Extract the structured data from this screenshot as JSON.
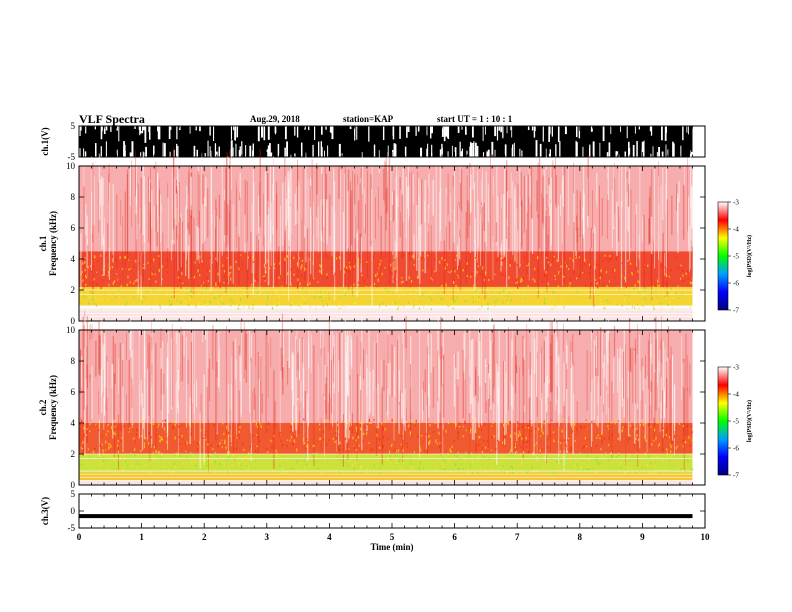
{
  "header": {
    "title": "VLF Spectra",
    "date": "Aug.29, 2018",
    "station": "station=KAP",
    "start_ut": "start  UT =   1 : 10 : 1"
  },
  "chart_data": [
    {
      "type": "line",
      "name": "ch1_waveform",
      "ylabel": "ch.1(V)",
      "ylim": [
        -5,
        5
      ],
      "yticks": [
        "5",
        "-5"
      ],
      "xlim": [
        0,
        10
      ],
      "note": "dense saturated waveform trace spanning full range"
    },
    {
      "type": "heatmap",
      "name": "ch1_spectrogram",
      "ylabel_line1": "ch.1",
      "ylabel_line2": "Frequency (kHz)",
      "ylim": [
        0,
        10
      ],
      "yticks": [
        "0",
        "2",
        "4",
        "6",
        "8",
        "10"
      ],
      "xlim": [
        0,
        9.8
      ],
      "bands": [
        {
          "from": 0.8,
          "to": 1.0,
          "color": "#ffffff"
        },
        {
          "from": 1.0,
          "to": 2.2,
          "color": "#f4d21e"
        },
        {
          "from": 2.2,
          "to": 4.5,
          "color": "#ee3a1c"
        },
        {
          "from": 4.5,
          "to": 10,
          "color": "#f6a6a6"
        }
      ],
      "colorbar": {
        "label": "log(PSD)(V²/Hz)",
        "ticks": [
          "-3",
          "-4",
          "-5",
          "-6",
          "-7"
        ],
        "range": [
          -7,
          -3
        ],
        "colors": [
          "#ffffff",
          "#ff0000",
          "#ffff00",
          "#00ff00",
          "#00a0ff",
          "#0000ff",
          "#000080"
        ]
      }
    },
    {
      "type": "heatmap",
      "name": "ch2_spectrogram",
      "ylabel_line1": "ch.2",
      "ylabel_line2": "Frequency (kHz)",
      "ylim": [
        0,
        10
      ],
      "yticks": [
        "0",
        "2",
        "4",
        "6",
        "8",
        "10"
      ],
      "xlim": [
        0,
        9.8
      ],
      "bands": [
        {
          "from": 0.3,
          "to": 0.8,
          "color": "#f6c018"
        },
        {
          "from": 0.8,
          "to": 2.0,
          "color": "#c8e02a"
        },
        {
          "from": 2.0,
          "to": 4.0,
          "color": "#ef4a1c"
        },
        {
          "from": 4.0,
          "to": 10,
          "color": "#f6a6a6"
        }
      ],
      "colorbar": {
        "label": "log(PSD)(V²/Hz)",
        "ticks": [
          "-3",
          "-4",
          "-5",
          "-6",
          "-7"
        ],
        "range": [
          -7,
          -3
        ],
        "colors": [
          "#ffffff",
          "#ff0000",
          "#ffff00",
          "#00ff00",
          "#00a0ff",
          "#0000ff",
          "#000080"
        ]
      }
    },
    {
      "type": "line",
      "name": "ch3_waveform",
      "ylabel": "ch.3(V)",
      "ylim": [
        -5,
        5
      ],
      "yticks": [
        "5",
        "0",
        "-5"
      ],
      "xlim": [
        0,
        10
      ],
      "value": -1.5,
      "xlabel": "Time (min)",
      "xticks": [
        "0",
        "1",
        "2",
        "3",
        "4",
        "5",
        "6",
        "7",
        "8",
        "9",
        "10"
      ]
    }
  ]
}
